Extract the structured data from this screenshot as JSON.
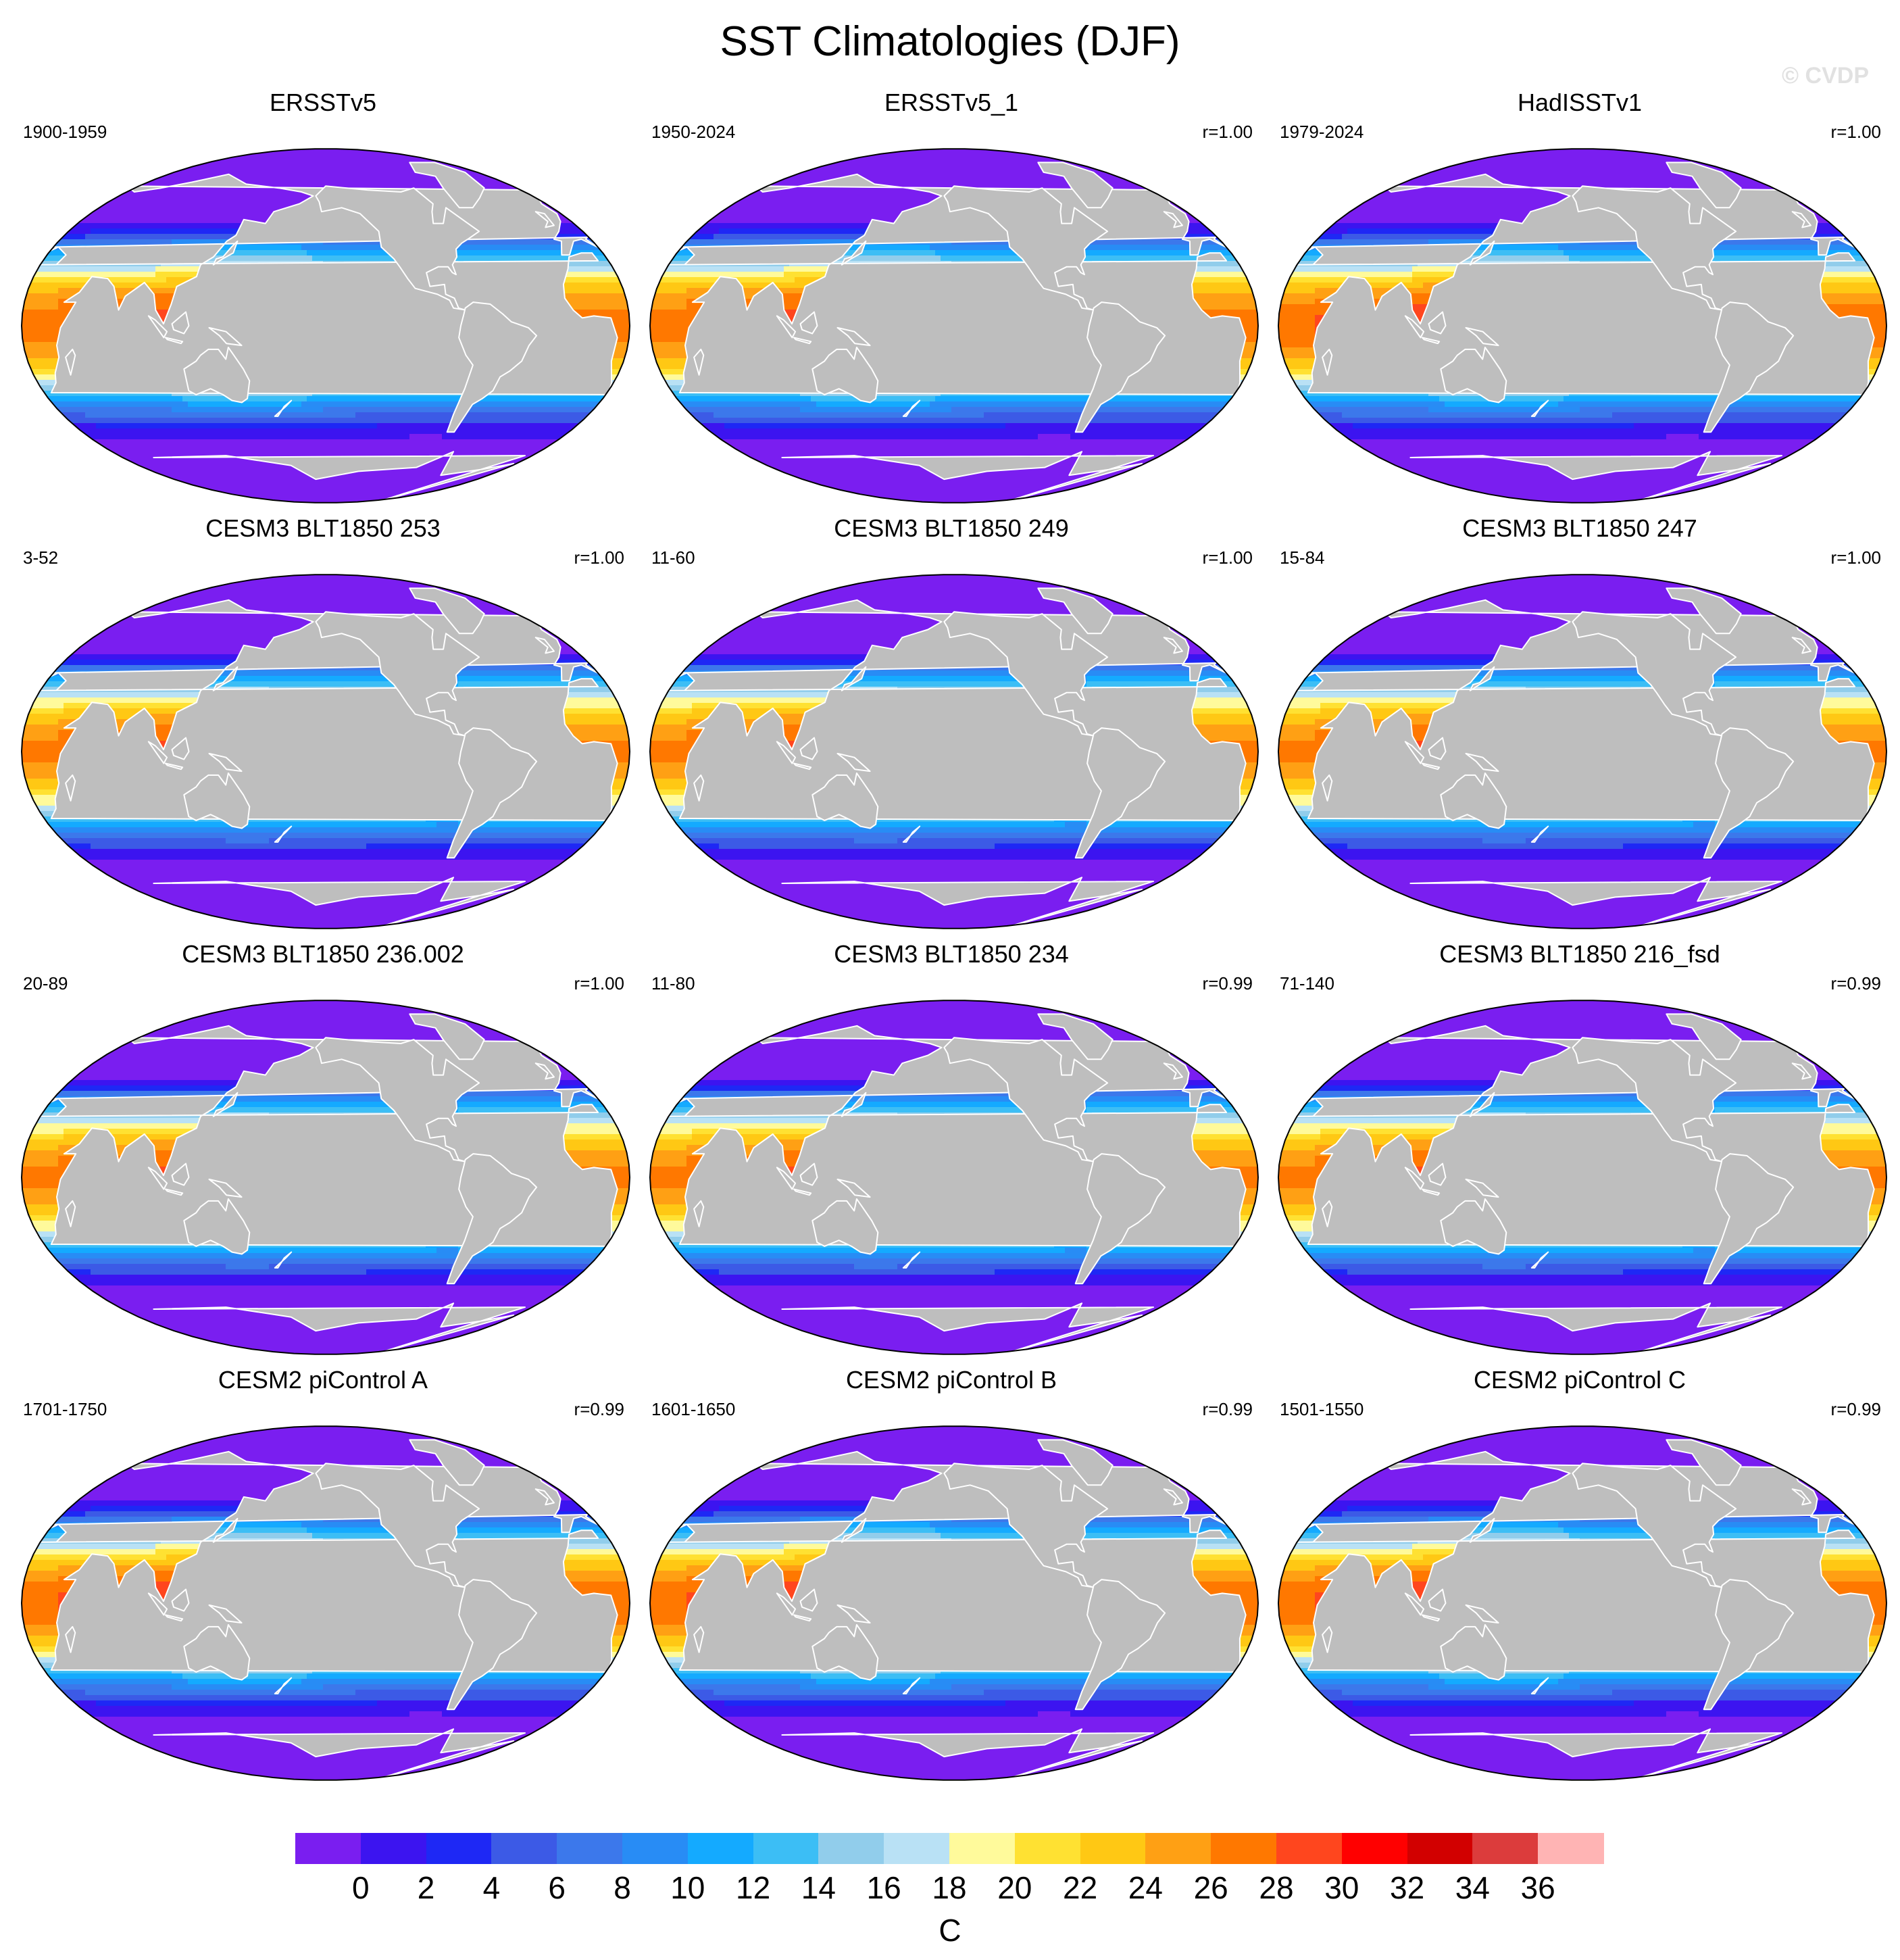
{
  "figure": {
    "title": "SST Climatologies (DJF)",
    "watermark": "© CVDP"
  },
  "panels": [
    {
      "title": "ERSSTv5",
      "years": "1900-1959",
      "corr": "",
      "profile": "obs"
    },
    {
      "title": "ERSSTv5_1",
      "years": "1950-2024",
      "corr": "r=1.00",
      "profile": "obs"
    },
    {
      "title": "HadISSTv1",
      "years": "1979-2024",
      "corr": "r=1.00",
      "profile": "had"
    },
    {
      "title": "CESM3 BLT1850 253",
      "years": "3-52",
      "corr": "r=1.00",
      "profile": "cesm3"
    },
    {
      "title": "CESM3 BLT1850 249",
      "years": "11-60",
      "corr": "r=1.00",
      "profile": "cesm3"
    },
    {
      "title": "CESM3 BLT1850 247",
      "years": "15-84",
      "corr": "r=1.00",
      "profile": "cesm3"
    },
    {
      "title": "CESM3 BLT1850 236.002",
      "years": "20-89",
      "corr": "r=1.00",
      "profile": "cesm3"
    },
    {
      "title": "CESM3 BLT1850 234",
      "years": "11-80",
      "corr": "r=0.99",
      "profile": "cesm3"
    },
    {
      "title": "CESM3 BLT1850 216_fsd",
      "years": "71-140",
      "corr": "r=0.99",
      "profile": "cesm3"
    },
    {
      "title": "CESM2 piControl A",
      "years": "1701-1750",
      "corr": "r=0.99",
      "profile": "cesm2"
    },
    {
      "title": "CESM2 piControl B",
      "years": "1601-1650",
      "corr": "r=0.99",
      "profile": "cesm2"
    },
    {
      "title": "CESM2 piControl C",
      "years": "1501-1550",
      "corr": "r=0.99",
      "profile": "cesm2"
    }
  ],
  "colorbar": {
    "units": "C",
    "tick_labels": [
      "0",
      "2",
      "4",
      "6",
      "8",
      "10",
      "12",
      "14",
      "16",
      "18",
      "20",
      "22",
      "24",
      "26",
      "28",
      "30",
      "32",
      "34",
      "36"
    ],
    "tick_values": [
      0,
      2,
      4,
      6,
      8,
      10,
      12,
      14,
      16,
      18,
      20,
      22,
      24,
      26,
      28,
      30,
      32,
      34,
      36
    ],
    "levels_min": -2,
    "levels_max": 38,
    "level_step": 2,
    "colors": [
      "#7a1ef0",
      "#3c14f0",
      "#1e28f5",
      "#3c5ae6",
      "#3c78eb",
      "#288cf5",
      "#14aaff",
      "#3cbef5",
      "#91cdeb",
      "#b9e1f5",
      "#fffa9b",
      "#ffe132",
      "#ffc814",
      "#ffa014",
      "#ff7800",
      "#ff461e",
      "#ff0000",
      "#d20000",
      "#dc3c3c",
      "#ffb4b4"
    ]
  },
  "map": {
    "land_color": "#bebebe",
    "coast_color": "#ffffff"
  }
}
